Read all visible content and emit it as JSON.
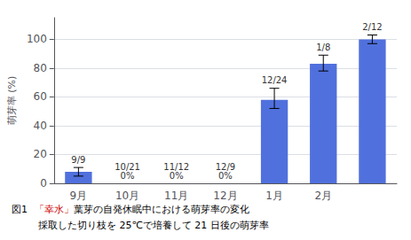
{
  "chart_data": {
    "type": "bar",
    "caption": [
      [
        {
          "text": "図1",
          "color": "#000000"
        },
        {
          "text": "「幸水」",
          "color": "#cc0000"
        },
        {
          "text": "葉芽の自発休眠中における萌芽率の変化",
          "color": "#000000"
        }
      ],
      [
        {
          "text": "採取した切り枝を 25℃で培養して 21 日後の萌芽率",
          "color": "#000000"
        }
      ]
    ],
    "ylabel": "萌芽率 (%)",
    "categories": [
      "9月",
      "10月",
      "11月",
      "12月",
      "1月",
      "2月",
      null
    ],
    "values": [
      8,
      0,
      0,
      0,
      58,
      83,
      100
    ],
    "err_low": [
      3,
      0,
      0,
      0,
      6,
      5,
      3
    ],
    "err_high": [
      3,
      0,
      0,
      0,
      8,
      6,
      3
    ],
    "annotations": [
      "9/9",
      "10/21\n0%",
      "11/12\n0%",
      "12/9\n0%",
      "12/24",
      "1/8",
      "2/12"
    ],
    "ylim": [
      0,
      115
    ],
    "yticks": [
      0,
      20,
      40,
      60,
      80,
      100
    ],
    "grid": true
  }
}
